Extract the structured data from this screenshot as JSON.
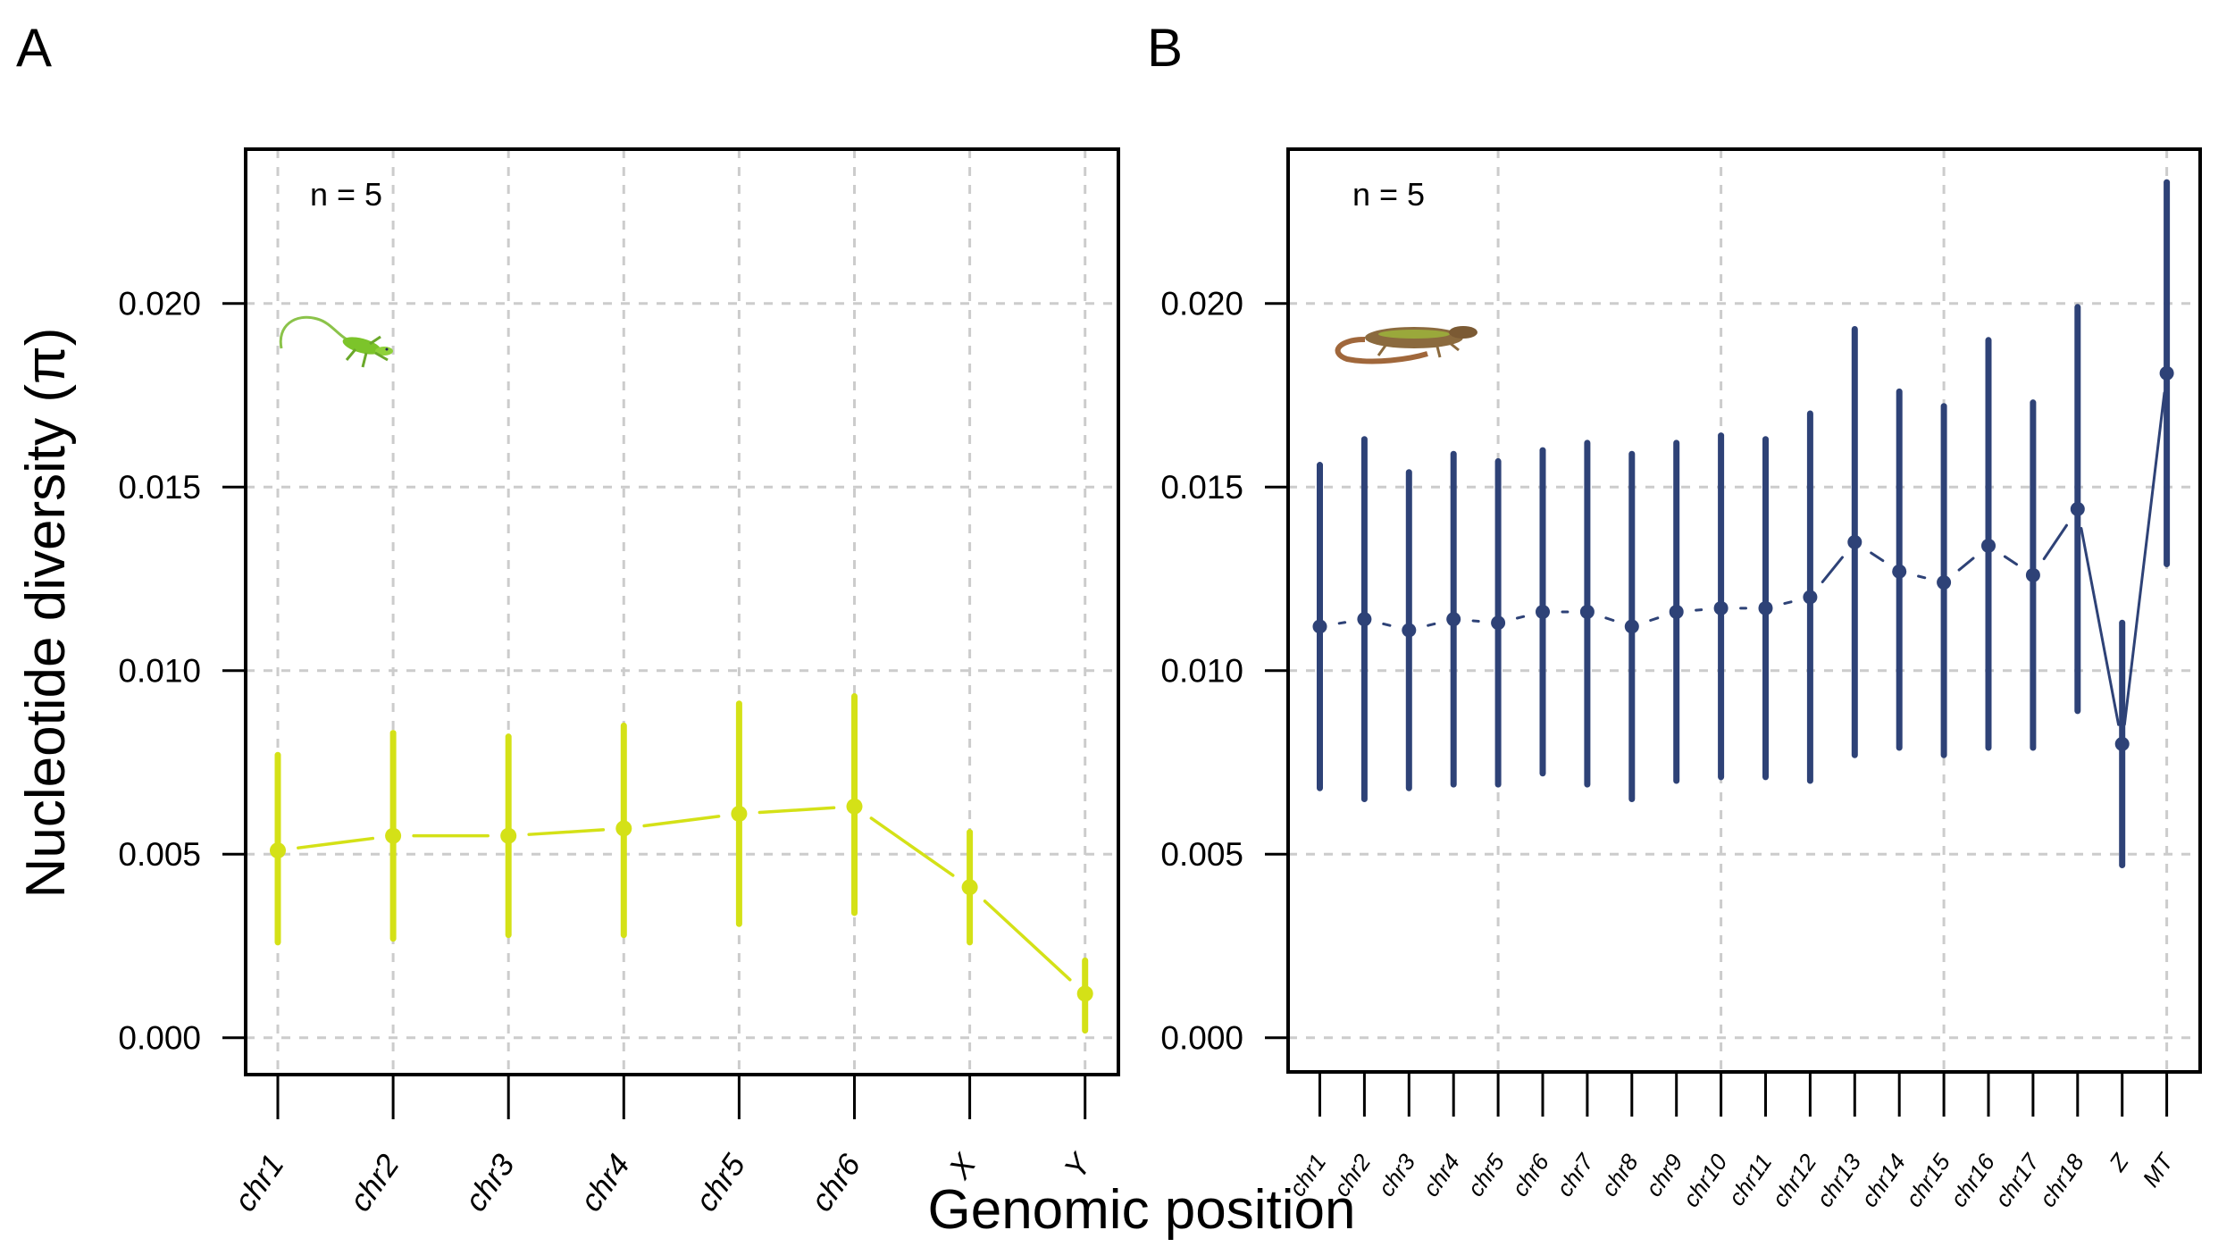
{
  "figure": {
    "panel_labels": [
      "A",
      "B"
    ],
    "ylabel": "Nucleotide diversity (π)",
    "xlabel": "Genomic position"
  },
  "chart_data": [
    {
      "type": "line",
      "panel": "A",
      "annotation": "n = 5",
      "icon": "green-anole-lizard-icon",
      "color": "#D4E117",
      "xlabel": "Genomic position",
      "ylabel": "Nucleotide diversity (π)",
      "ylim": [
        0.0,
        0.024
      ],
      "yticks": [
        "0.000",
        "0.005",
        "0.010",
        "0.015",
        "0.020"
      ],
      "ytick_values": [
        0.0,
        0.005,
        0.01,
        0.015,
        0.02
      ],
      "grid": true,
      "categories": [
        "chr1",
        "chr2",
        "chr3",
        "chr4",
        "chr5",
        "chr6",
        "X",
        "Y"
      ],
      "values": [
        0.0051,
        0.0055,
        0.0055,
        0.0057,
        0.0061,
        0.0063,
        0.0041,
        0.0012
      ],
      "lower": [
        0.0026,
        0.0027,
        0.0028,
        0.0028,
        0.0031,
        0.0034,
        0.0026,
        0.0002
      ],
      "upper": [
        0.0077,
        0.0083,
        0.0082,
        0.0085,
        0.0091,
        0.0093,
        0.0056,
        0.0021
      ],
      "vgrid_every": 1
    },
    {
      "type": "line",
      "panel": "B",
      "annotation": "n = 5",
      "icon": "wall-lizard-icon",
      "color": "#2E4277",
      "xlabel": "Genomic position",
      "ylabel": "Nucleotide diversity (π)",
      "ylim": [
        0.0,
        0.024
      ],
      "yticks": [
        "0.000",
        "0.005",
        "0.010",
        "0.015",
        "0.020"
      ],
      "ytick_values": [
        0.0,
        0.005,
        0.01,
        0.015,
        0.02
      ],
      "grid": true,
      "categories": [
        "chr1",
        "chr2",
        "chr3",
        "chr4",
        "chr5",
        "chr6",
        "chr7",
        "chr8",
        "chr9",
        "chr10",
        "chr11",
        "chr12",
        "chr13",
        "chr14",
        "chr15",
        "chr16",
        "chr17",
        "chr18",
        "Z",
        "MT"
      ],
      "values": [
        0.0112,
        0.0114,
        0.0111,
        0.0114,
        0.0113,
        0.0116,
        0.0116,
        0.0112,
        0.0116,
        0.0117,
        0.0117,
        0.012,
        0.0135,
        0.0127,
        0.0124,
        0.0134,
        0.0126,
        0.0144,
        0.008,
        0.0181
      ],
      "lower": [
        0.0068,
        0.0065,
        0.0068,
        0.0069,
        0.0069,
        0.0072,
        0.0069,
        0.0065,
        0.007,
        0.0071,
        0.0071,
        0.007,
        0.0077,
        0.0079,
        0.0077,
        0.0079,
        0.0079,
        0.0089,
        0.0047,
        0.0129
      ],
      "upper": [
        0.0156,
        0.0163,
        0.0154,
        0.0159,
        0.0157,
        0.016,
        0.0162,
        0.0159,
        0.0162,
        0.0164,
        0.0163,
        0.017,
        0.0193,
        0.0176,
        0.0172,
        0.019,
        0.0173,
        0.0199,
        0.0113,
        0.0233
      ],
      "vgrid_every": 5
    }
  ]
}
